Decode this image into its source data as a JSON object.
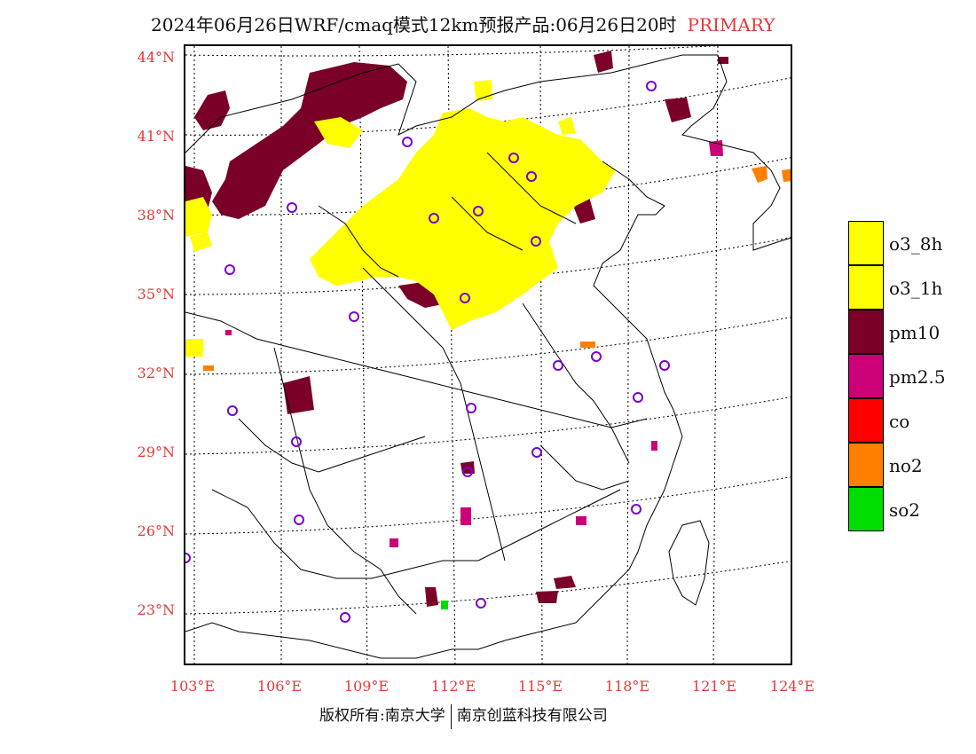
{
  "title": {
    "main": "2024年06月26日WRF/cmaq模式12km预报产品:06月26日20时",
    "tag": "PRIMARY"
  },
  "colors": {
    "label_red": "#e23a3a",
    "o3_8h": "#ffff00",
    "o3_1h": "#ffff00",
    "pm10": "#7a0028",
    "pm25": "#cc0077",
    "co": "#ff0000",
    "no2": "#ff7f00",
    "so2": "#00dd00",
    "station_ring": "#7a00cc"
  },
  "lat_labels": [
    "44°N",
    "41°N",
    "38°N",
    "35°N",
    "32°N",
    "29°N",
    "26°N",
    "23°N"
  ],
  "lon_labels": [
    "103°E",
    "106°E",
    "109°E",
    "112°E",
    "115°E",
    "118°E",
    "121°E",
    "124°E"
  ],
  "legend": [
    {
      "label": "o3_8h",
      "color": "#ffff00"
    },
    {
      "label": "o3_1h",
      "color": "#ffff00"
    },
    {
      "label": "pm10",
      "color": "#7a0028"
    },
    {
      "label": "pm2.5",
      "color": "#cc0077"
    },
    {
      "label": "co",
      "color": "#ff0000"
    },
    {
      "label": "no2",
      "color": "#ff7f00"
    },
    {
      "label": "so2",
      "color": "#00dd00"
    }
  ],
  "footer": {
    "left": "版权所有:南京大学",
    "right": "南京创蓝科技有限公司"
  }
}
